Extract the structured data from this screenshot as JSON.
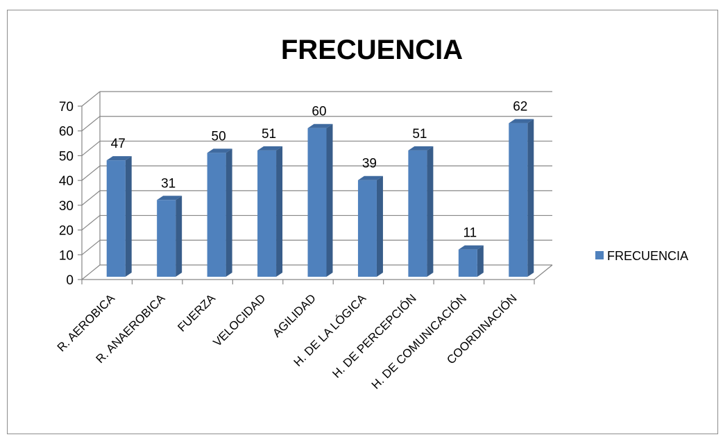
{
  "chart_data": {
    "type": "bar",
    "title": "FRECUENCIA",
    "categories": [
      "R. AEROBICA",
      "R. ANAEROBICA",
      "FUERZA",
      "VELOCIDAD",
      "AGILIDAD",
      "H. DE LA LÓGICA",
      "H. DE PERCEPCIÓN",
      "H. DE COMUNICACIÓN",
      "COORDINACIÓN"
    ],
    "series": [
      {
        "name": "FRECUENCIA",
        "values": [
          47,
          31,
          50,
          51,
          60,
          39,
          51,
          11,
          62
        ],
        "color": "#4f81bd"
      }
    ],
    "ylim": [
      0,
      70
    ],
    "yticks": [
      "0",
      "10",
      "20",
      "30",
      "40",
      "50",
      "60",
      "70"
    ],
    "data_labels": true,
    "grid": true,
    "legend_position": "right",
    "style": "3d-column"
  }
}
